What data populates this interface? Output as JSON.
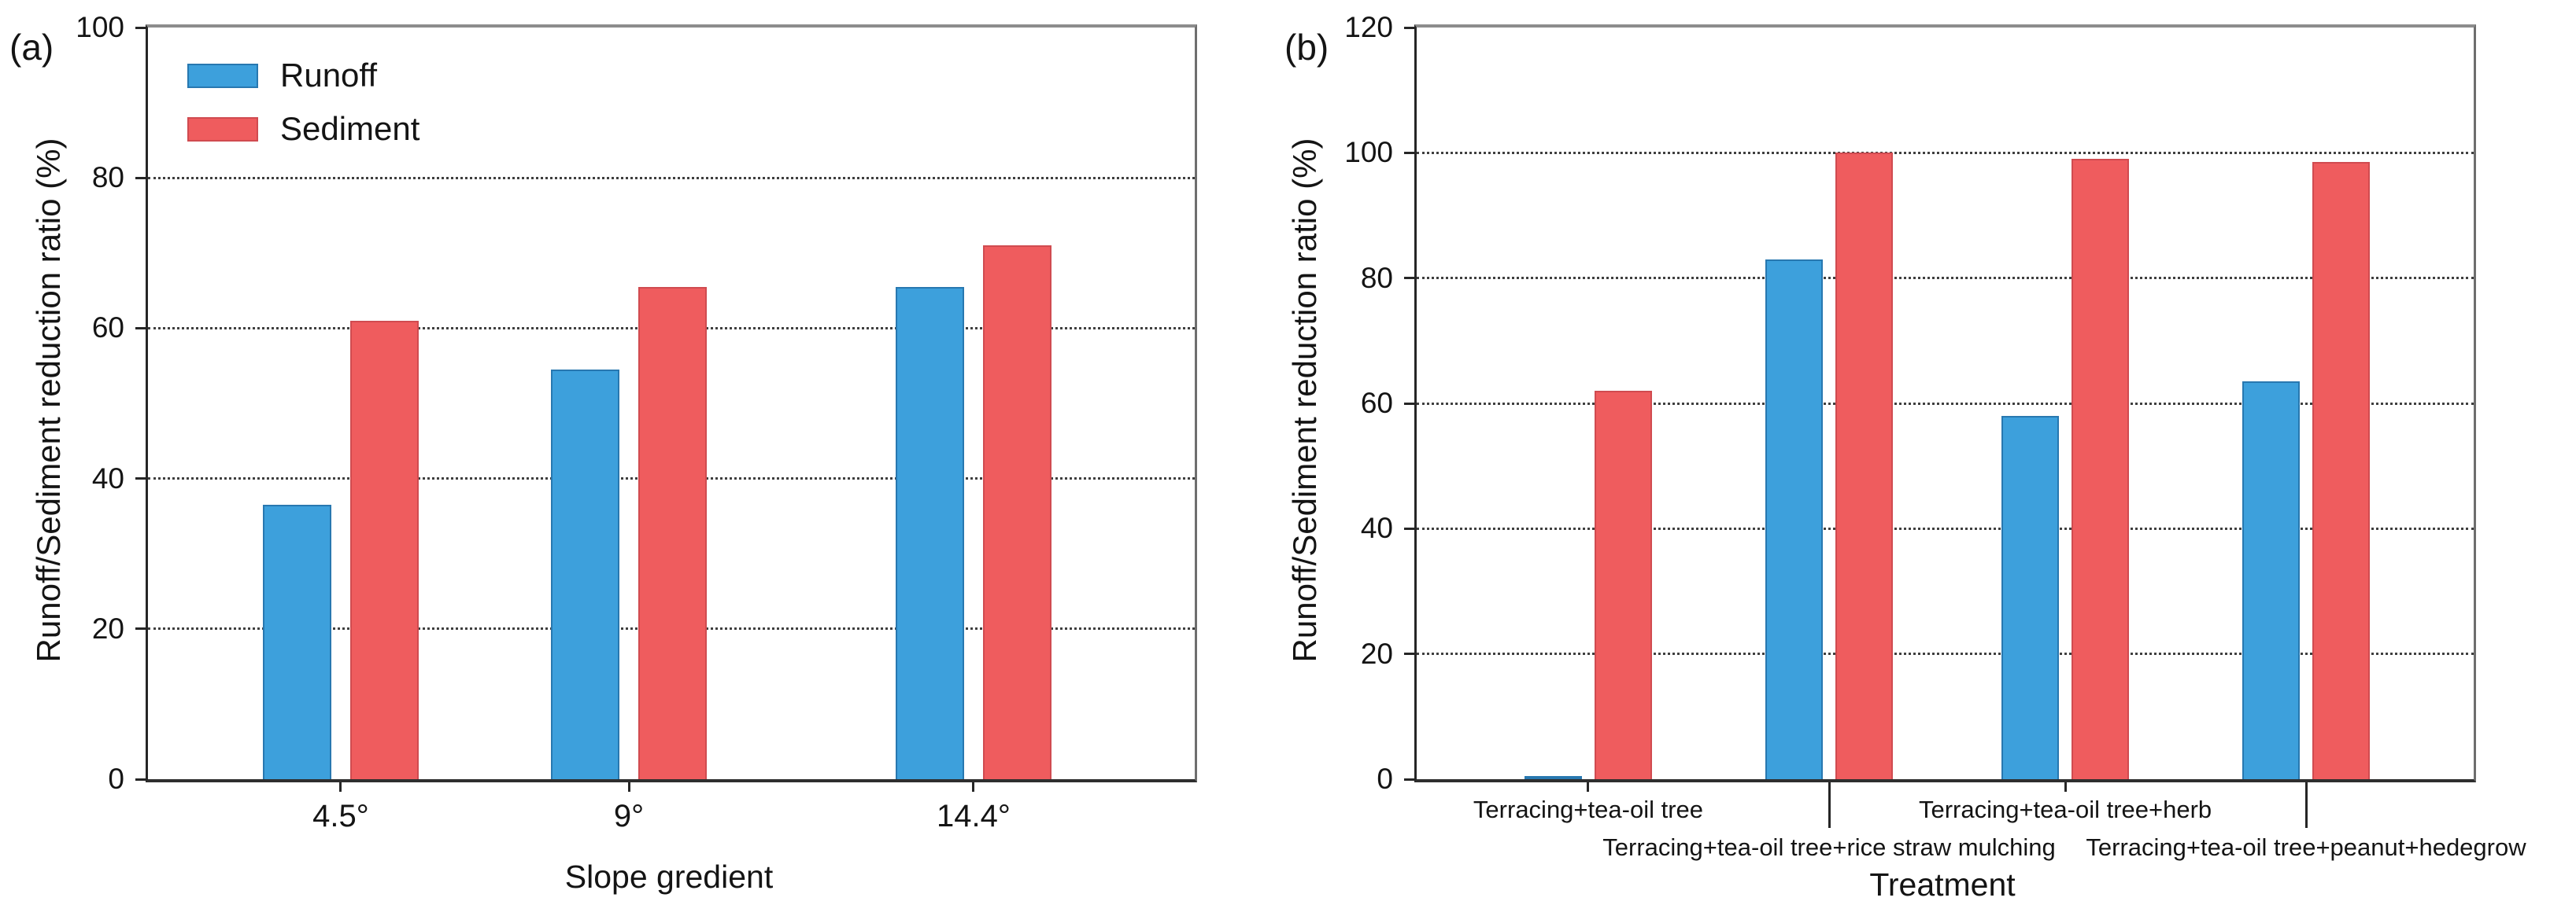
{
  "colors": {
    "runoff": "#3DA0DC",
    "runoff_edge": "#2878B0",
    "sediment": "#EF5C5E",
    "sediment_edge": "#D04B50",
    "axis": "#262626",
    "frame_top": "#8C8C8C",
    "grid": "#3F3F3F",
    "text": "#141414",
    "background": "#FFFFFF"
  },
  "legend": {
    "items": [
      {
        "label": "Runoff",
        "color_key": "runoff"
      },
      {
        "label": "Sediment",
        "color_key": "sediment"
      }
    ],
    "position": "upper-left-inside-panel-a"
  },
  "chart_data": [
    {
      "id": "a",
      "type": "bar",
      "panel_label": "(a)",
      "xlabel": "Slope gredient",
      "ylabel": "Runoff/Sediment reduction ratio (%)",
      "ylim": [
        0,
        100
      ],
      "yticks": [
        0,
        20,
        40,
        60,
        80,
        100
      ],
      "grid": "horizontal-dotted-at-major-ticks",
      "legend_position": "upper-left-inside",
      "categories": [
        "4.5°",
        "9°",
        "14.4°"
      ],
      "series": [
        {
          "name": "Runoff",
          "values": [
            36.5,
            54.5,
            65.5
          ]
        },
        {
          "name": "Sediment",
          "values": [
            61,
            65.5,
            71
          ]
        }
      ]
    },
    {
      "id": "b",
      "type": "bar",
      "panel_label": "(b)",
      "xlabel": "Treatment",
      "ylabel": "Runoff/Sediment reduction ratio (%)",
      "ylim": [
        0,
        120
      ],
      "yticks": [
        0,
        20,
        40,
        60,
        80,
        100,
        120
      ],
      "grid": "horizontal-dotted-at-major-ticks",
      "legend_position": "none",
      "categories": [
        "Terracing+tea-oil tree",
        "Terracing+tea-oil tree+rice straw mulching",
        "Terracing+tea-oil tree+herb",
        "Terracing+tea-oil tree+peanut+hedegrow"
      ],
      "category_label_rows": [
        1,
        2,
        1,
        2
      ],
      "series": [
        {
          "name": "Runoff",
          "values": [
            0,
            83,
            58,
            63.5
          ]
        },
        {
          "name": "Sediment",
          "values": [
            62,
            100,
            99,
            98.5
          ]
        }
      ]
    }
  ]
}
